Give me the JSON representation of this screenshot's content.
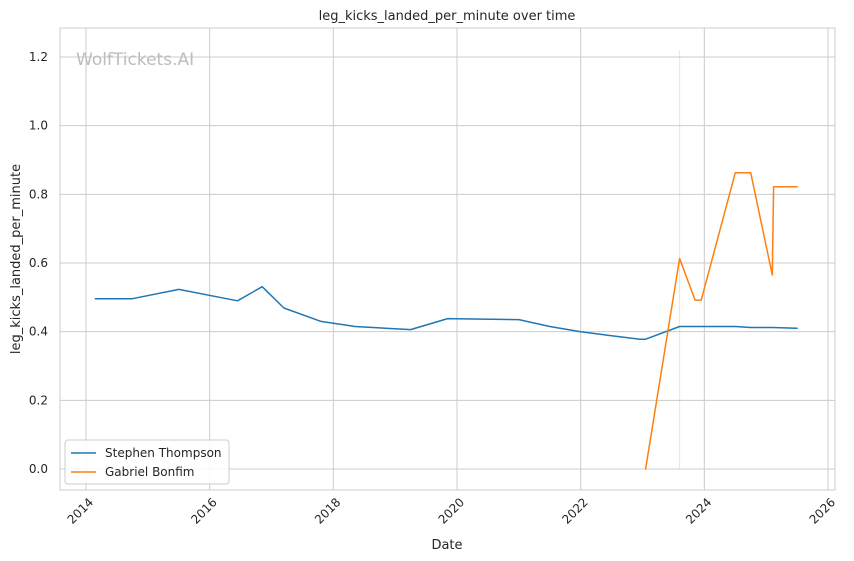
{
  "chart_data": {
    "type": "line",
    "title": "leg_kicks_landed_per_minute over time",
    "xlabel": "Date",
    "ylabel": "leg_kicks_landed_per_minute",
    "xlim": [
      2013.6,
      2026.0
    ],
    "ylim": [
      -0.06,
      1.28
    ],
    "x_ticks": [
      2014,
      2016,
      2018,
      2020,
      2022,
      2024,
      2026
    ],
    "x_tick_labels": [
      "2014",
      "2016",
      "2018",
      "2020",
      "2022",
      "2024",
      "2026"
    ],
    "y_ticks": [
      0.0,
      0.2,
      0.4,
      0.6,
      0.8,
      1.0,
      1.2
    ],
    "y_tick_labels": [
      "0.0",
      "0.2",
      "0.4",
      "0.6",
      "0.8",
      "1.0",
      "1.2"
    ],
    "grid": true,
    "legend_position": "lower-left",
    "watermark": "WolfTickets.AI",
    "marker_line": {
      "x": 2023.6,
      "y_range": [
        0.0,
        1.22
      ],
      "color": "#ff7f0e"
    },
    "series": [
      {
        "name": "Stephen Thompson",
        "color": "#1f77b4",
        "x": [
          2014.15,
          2014.75,
          2015.5,
          2016.45,
          2016.85,
          2017.2,
          2017.8,
          2018.35,
          2019.25,
          2019.85,
          2021.0,
          2021.5,
          2022.0,
          2022.5,
          2022.95,
          2023.05,
          2023.6,
          2024.5,
          2024.75,
          2025.1,
          2025.5
        ],
        "y": [
          0.496,
          0.496,
          0.523,
          0.49,
          0.531,
          0.469,
          0.43,
          0.415,
          0.406,
          0.438,
          0.435,
          0.415,
          0.4,
          0.388,
          0.378,
          0.378,
          0.415,
          0.415,
          0.412,
          0.412,
          0.41
        ]
      },
      {
        "name": "Gabriel Bonfim",
        "color": "#ff7f0e",
        "x": [
          2023.05,
          2023.6,
          2023.85,
          2023.95,
          2024.5,
          2024.75,
          2025.1,
          2025.12,
          2025.5
        ],
        "y": [
          0.0,
          0.613,
          0.492,
          0.492,
          0.863,
          0.863,
          0.565,
          0.822,
          0.822
        ]
      }
    ]
  }
}
